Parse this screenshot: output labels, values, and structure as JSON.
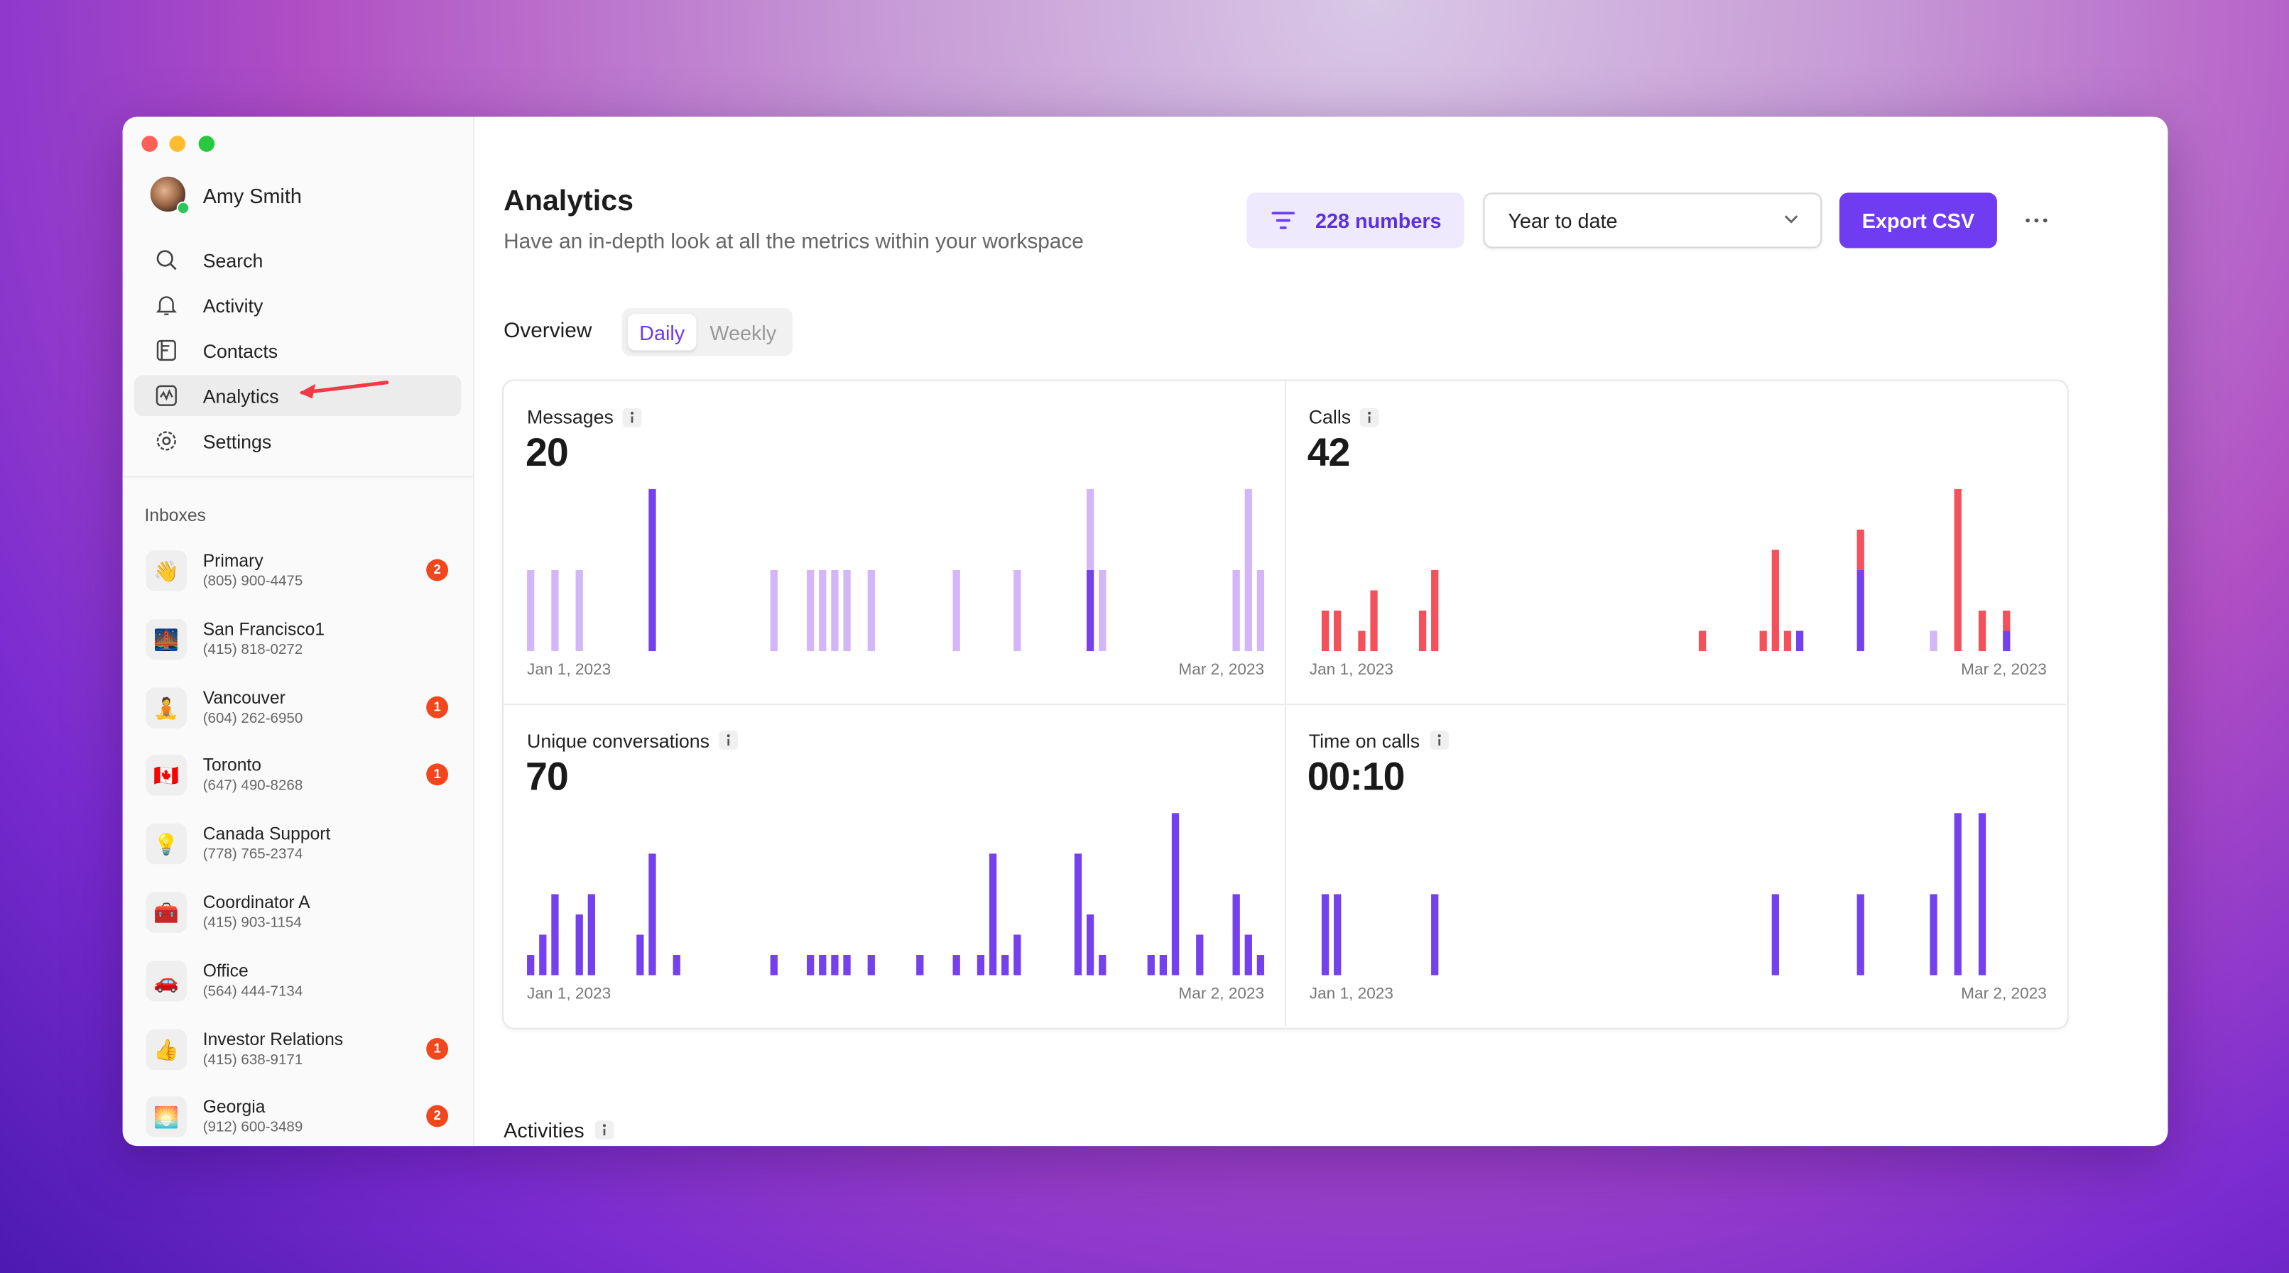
{
  "user": {
    "name": "Amy Smith"
  },
  "nav": [
    "Search",
    "Activity",
    "Contacts",
    "Analytics",
    "Settings"
  ],
  "inboxes_heading": "Inboxes",
  "inboxes": [
    {
      "icon": "👋",
      "name": "Primary",
      "phone": "(805) 900-4475",
      "badge": 2
    },
    {
      "icon": "🌉",
      "name": "San Francisco1",
      "phone": "(415) 818-0272"
    },
    {
      "icon": "🧘",
      "name": "Vancouver",
      "phone": "(604) 262-6950",
      "badge": 1
    },
    {
      "icon": "🇨🇦",
      "name": "Toronto",
      "phone": "(647) 490-8268",
      "badge": 1
    },
    {
      "icon": "💡",
      "name": "Canada Support",
      "phone": "(778) 765-2374"
    },
    {
      "icon": "🧰",
      "name": "Coordinator A",
      "phone": "(415) 903-1154"
    },
    {
      "icon": "🚗",
      "name": "Office",
      "phone": "(564) 444-7134"
    },
    {
      "icon": "👍",
      "name": "Investor Relations",
      "phone": "(415) 638-9171",
      "badge": 1
    },
    {
      "icon": "🌅",
      "name": "Georgia",
      "phone": "(912) 600-3489",
      "badge": 2
    }
  ],
  "header": {
    "title": "Analytics",
    "subtitle": "Have an in-depth look at all the metrics within your workspace",
    "numbers_button": "228 numbers",
    "range": "Year to date",
    "export": "Export CSV"
  },
  "tabs": {
    "label": "Overview",
    "options": [
      "Daily",
      "Weekly"
    ]
  },
  "cards": [
    {
      "title": "Messages",
      "total": 20,
      "chart_data": {
        "type": "bar",
        "stacked": true,
        "x": [
          0,
          2,
          4,
          10,
          20,
          23,
          24,
          25,
          26,
          28,
          35,
          40,
          46,
          47,
          58,
          59,
          60
        ],
        "xlim": [
          0,
          60
        ],
        "xticks": [
          {
            "value": 0,
            "label": "Jan 1, 2023"
          },
          {
            "value": 60,
            "label": "Mar 2, 2023"
          }
        ],
        "ylim": [
          0,
          2
        ],
        "series": [
          {
            "color": "#7541ee",
            "values": [
              0,
              0,
              0,
              2,
              0,
              0,
              0,
              0,
              0,
              0,
              0,
              0,
              1,
              0,
              0,
              0,
              0
            ]
          },
          {
            "color": "#d3b6f8",
            "values": [
              1,
              1,
              1,
              0,
              1,
              1,
              1,
              1,
              1,
              1,
              1,
              1,
              1,
              1,
              1,
              2,
              1
            ]
          }
        ]
      }
    },
    {
      "title": "Calls",
      "total": 42,
      "chart_data": {
        "type": "bar",
        "stacked": true,
        "x": [
          1,
          2,
          4,
          5,
          9,
          10,
          32,
          37,
          38,
          39,
          40,
          45,
          51,
          53,
          55,
          57
        ],
        "xlim": [
          0,
          60
        ],
        "xticks": [
          {
            "value": 0,
            "label": "Jan 1, 2023"
          },
          {
            "value": 60,
            "label": "Mar 2, 2023"
          }
        ],
        "ylim": [
          0,
          8
        ],
        "series": [
          {
            "color": "#7541ee",
            "values": [
              0,
              0,
              0,
              0,
              0,
              0,
              0,
              0,
              0,
              0,
              1,
              4,
              0,
              0,
              0,
              1
            ]
          },
          {
            "color": "#f4515b",
            "values": [
              2,
              2,
              1,
              3,
              2,
              4,
              1,
              1,
              5,
              1,
              0,
              2,
              0,
              8,
              2,
              1
            ]
          },
          {
            "color": "#d3b6f8",
            "values": [
              0,
              0,
              0,
              0,
              0,
              0,
              0,
              0,
              0,
              0,
              0,
              0,
              1,
              0,
              0,
              0
            ]
          }
        ]
      }
    },
    {
      "title": "Unique conversations",
      "total": 70,
      "chart_data": {
        "type": "bar",
        "stacked": true,
        "x": [
          0,
          1,
          2,
          4,
          5,
          9,
          10,
          12,
          20,
          23,
          24,
          25,
          26,
          28,
          32,
          35,
          37,
          38,
          39,
          40,
          45,
          46,
          47,
          51,
          52,
          53,
          55,
          58,
          59,
          60
        ],
        "xlim": [
          0,
          60
        ],
        "xticks": [
          {
            "value": 0,
            "label": "Jan 1, 2023"
          },
          {
            "value": 60,
            "label": "Mar 2, 2023"
          }
        ],
        "ylim": [
          0,
          8
        ],
        "series": [
          {
            "color": "#7541ee",
            "values": [
              1,
              2,
              4,
              3,
              4,
              2,
              6,
              1,
              1,
              1,
              1,
              1,
              1,
              1,
              1,
              1,
              1,
              6,
              1,
              2,
              6,
              3,
              1,
              1,
              1,
              8,
              2,
              4,
              2,
              1
            ]
          }
        ]
      }
    },
    {
      "title": "Time on calls",
      "total": "00:10",
      "chart_data": {
        "type": "bar",
        "stacked": true,
        "x": [
          1,
          2,
          10,
          38,
          45,
          51,
          53,
          55
        ],
        "xlim": [
          0,
          60
        ],
        "xticks": [
          {
            "value": 0,
            "label": "Jan 1, 2023"
          },
          {
            "value": 60,
            "label": "Mar 2, 2023"
          }
        ],
        "ylim": [
          0,
          2
        ],
        "series": [
          {
            "color": "#7541ee",
            "values": [
              1,
              1,
              1,
              1,
              1,
              1,
              2,
              2
            ]
          }
        ]
      }
    }
  ],
  "activities": "Activities"
}
